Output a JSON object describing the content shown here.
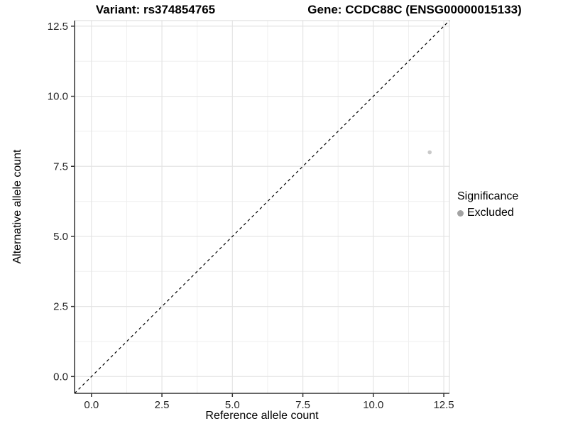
{
  "chart_data": {
    "type": "scatter",
    "title_left": "Variant: rs374854765",
    "title_right": "Gene: CCDC88C (ENSG00000015133)",
    "xlabel": "Reference allele count",
    "ylabel": "Alternative allele count",
    "xlim": [
      -0.6,
      12.7
    ],
    "ylim": [
      -0.6,
      12.7
    ],
    "major_ticks": [
      0,
      2.5,
      5,
      7.5,
      10,
      12.5
    ],
    "tick_labels": [
      "0.0",
      "2.5",
      "5.0",
      "7.5",
      "10.0",
      "12.5"
    ],
    "minor_ticks": [
      1.25,
      3.75,
      6.25,
      8.75,
      11.25
    ],
    "grid": true,
    "reference_line": {
      "type": "identity",
      "style": "dashed",
      "color": "#000000"
    },
    "series": [
      {
        "name": "Excluded",
        "color": "#c9c9c9",
        "point_radius": 2.8,
        "points": [
          {
            "x": 12,
            "y": 8
          }
        ]
      }
    ],
    "legend": {
      "title": "Significance",
      "position": "right",
      "items": [
        {
          "label": "Excluded",
          "color": "#a3a3a3"
        }
      ]
    }
  },
  "appearance": {
    "grid_major_color": "#e4e4e4",
    "grid_minor_color": "#efefef",
    "panel_border_color": "#d9d9d9",
    "axis_line_color": "#333333",
    "tick_text_color": "#262626"
  }
}
